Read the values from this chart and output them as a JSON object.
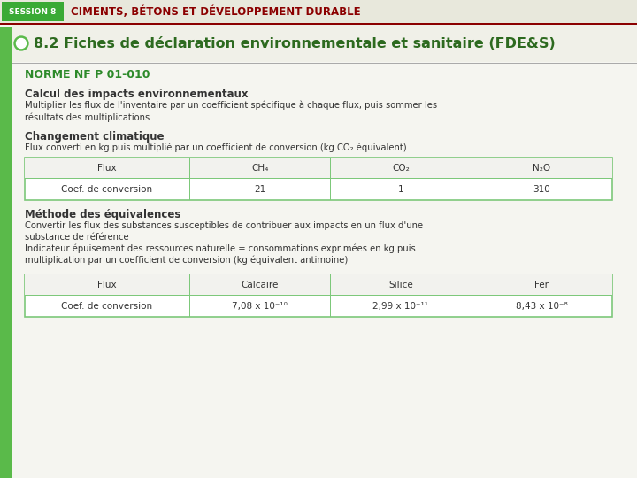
{
  "bg_color": "#f5f5f0",
  "session_box_color": "#3aaa35",
  "session_text": "SESSION 8",
  "session_text_color": "#ffffff",
  "header_title": "CIMENTS, BÉTONS ET DÉVELOPPEMENT DURABLE",
  "header_title_color": "#8B0000",
  "header_bg": "#e8e8dc",
  "section_title": "8.2 Fiches de déclaration environnementale et sanitaire (FDE&S)",
  "section_title_color": "#2d6a1f",
  "section_bg": "#f0f0e8",
  "green_left_bar_color": "#5aba4a",
  "green_circle_color": "#5aba4a",
  "norme_text": "NORME NF P 01-010",
  "norme_color": "#2d8a2a",
  "calc_title": "Calcul des impacts environnementaux",
  "calc_body": "Multiplier les flux de l'inventaire par un coefficient spécifique à chaque flux, puis sommer les\nrésultats des multiplications",
  "chgt_title": "Changement climatique",
  "chgt_body": "Flux converti en kg puis multiplié par un coefficient de conversion (kg CO₂ équivalent)",
  "table1_header": [
    "Flux",
    "CH₄",
    "CO₂",
    "N₂O"
  ],
  "table1_row": [
    "Coef. de conversion",
    "21",
    "1",
    "310"
  ],
  "table_border_color": "#7dc87a",
  "methode_title": "Méthode des équivalences",
  "methode_body1": "Convertir les flux des substances susceptibles de contribuer aux impacts en un flux d'une\nsubstance de référence",
  "methode_body2": "Indicateur épuisement des ressources naturelle = consommations exprimées en kg puis\nmultiplication par un coefficient de conversion (kg équivalent antimoine)",
  "table2_header": [
    "Flux",
    "Calcaire",
    "Silice",
    "Fer"
  ],
  "table2_row": [
    "Coef. de conversion",
    "7,08 x 10⁻¹⁰",
    "2,99 x 10⁻¹¹",
    "8,43 x 10⁻⁸"
  ],
  "red_line_color": "#8B0000",
  "gray_line_color": "#aaaaaa",
  "body_text_color": "#333333"
}
